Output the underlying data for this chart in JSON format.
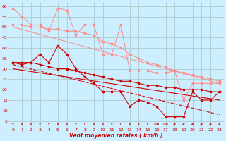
{
  "background_color": "#cceeff",
  "grid_color": "#aacccc",
  "line_color_dark": "#cc0000",
  "line_color_light": "#ff8888",
  "xlabel": "Vent moyen/en rafales ( km/h )",
  "xlim": [
    -0.5,
    23.5
  ],
  "ylim": [
    2,
    62
  ],
  "yticks": [
    5,
    10,
    15,
    20,
    25,
    30,
    35,
    40,
    45,
    50,
    55,
    60
  ],
  "xticks": [
    0,
    1,
    2,
    3,
    4,
    5,
    6,
    7,
    8,
    9,
    10,
    11,
    12,
    13,
    14,
    15,
    16,
    17,
    18,
    19,
    20,
    21,
    22,
    23
  ],
  "series_light_1": [
    59,
    55,
    51,
    51,
    48,
    59,
    58,
    46,
    51,
    51,
    37,
    37,
    51,
    29,
    29,
    29,
    28,
    28,
    29,
    15,
    23,
    23,
    23,
    23
  ],
  "series_light_2": [
    51,
    51,
    50,
    50,
    49,
    49,
    48,
    48,
    47,
    46,
    43,
    42,
    40,
    37,
    35,
    33,
    32,
    31,
    29,
    28,
    27,
    26,
    25,
    24
  ],
  "series_light_line_x": [
    0,
    23
  ],
  "series_light_line_y": [
    50,
    23
  ],
  "series_dark_1": [
    33,
    32,
    33,
    37,
    33,
    41,
    37,
    30,
    26,
    23,
    19,
    19,
    19,
    12,
    15,
    14,
    12,
    7,
    7,
    7,
    19,
    15,
    15,
    19
  ],
  "series_dark_2": [
    33,
    33,
    33,
    32,
    31,
    30,
    30,
    29,
    28,
    27,
    26,
    25,
    24,
    24,
    23,
    22,
    22,
    21,
    21,
    20,
    20,
    20,
    19,
    19
  ],
  "series_dark_line1_x": [
    0,
    23
  ],
  "series_dark_line1_y": [
    32,
    8
  ],
  "series_dark_line2_x": [
    0,
    23
  ],
  "series_dark_line2_y": [
    30,
    15
  ],
  "marker_size": 1.8,
  "lw_light": 0.7,
  "lw_dark": 0.8
}
